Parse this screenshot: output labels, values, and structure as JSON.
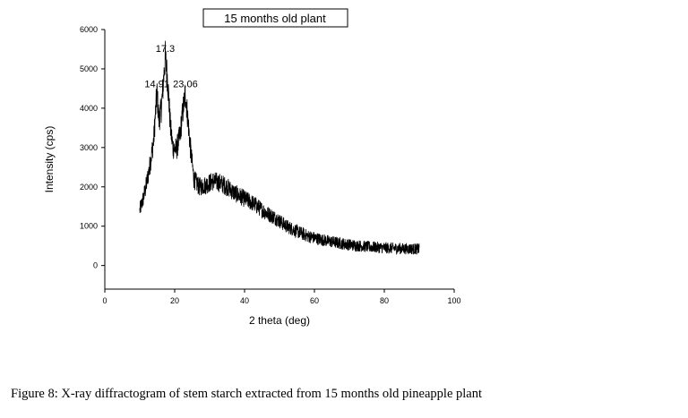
{
  "chart_data": {
    "type": "line",
    "title": "15 months old plant",
    "xlabel": "2 theta (deg)",
    "ylabel": "Intensity (cps)",
    "xlim": [
      0,
      100
    ],
    "ylim": [
      -600,
      6000
    ],
    "xticks": [
      0,
      20,
      40,
      60,
      80,
      100
    ],
    "yticks": [
      0,
      1000,
      2000,
      3000,
      4000,
      5000,
      6000
    ],
    "grid": false,
    "legend": "none",
    "series": [
      {
        "color": "#000000",
        "x": [
          10,
          11,
          12,
          13,
          14,
          14.91,
          15.5,
          16.2,
          17.3,
          18,
          18.8,
          19.5,
          20.5,
          21.5,
          22.3,
          23.06,
          23.8,
          24.6,
          25.5,
          27,
          29,
          31,
          33,
          35,
          37,
          40,
          43,
          46,
          49,
          52,
          55,
          58,
          61,
          64,
          67,
          70,
          75,
          80,
          85,
          90
        ],
        "values": [
          1400,
          1700,
          2100,
          2600,
          3200,
          4400,
          3700,
          4000,
          5300,
          4700,
          3500,
          3000,
          2950,
          3300,
          3900,
          4400,
          3700,
          2900,
          2200,
          2000,
          2050,
          2150,
          2100,
          2000,
          1850,
          1700,
          1550,
          1350,
          1200,
          1000,
          870,
          750,
          680,
          620,
          570,
          530,
          480,
          450,
          430,
          420
        ]
      }
    ],
    "annotations": [
      {
        "text": "14.91",
        "x": 14.91,
        "y": 4400
      },
      {
        "text": "17.3",
        "x": 17.3,
        "y": 5300
      },
      {
        "text": "23.06",
        "x": 23.06,
        "y": 4400
      }
    ]
  },
  "caption": "Figure 8:  X-ray diffractogram of stem starch extracted from 15 months old pineapple plant"
}
